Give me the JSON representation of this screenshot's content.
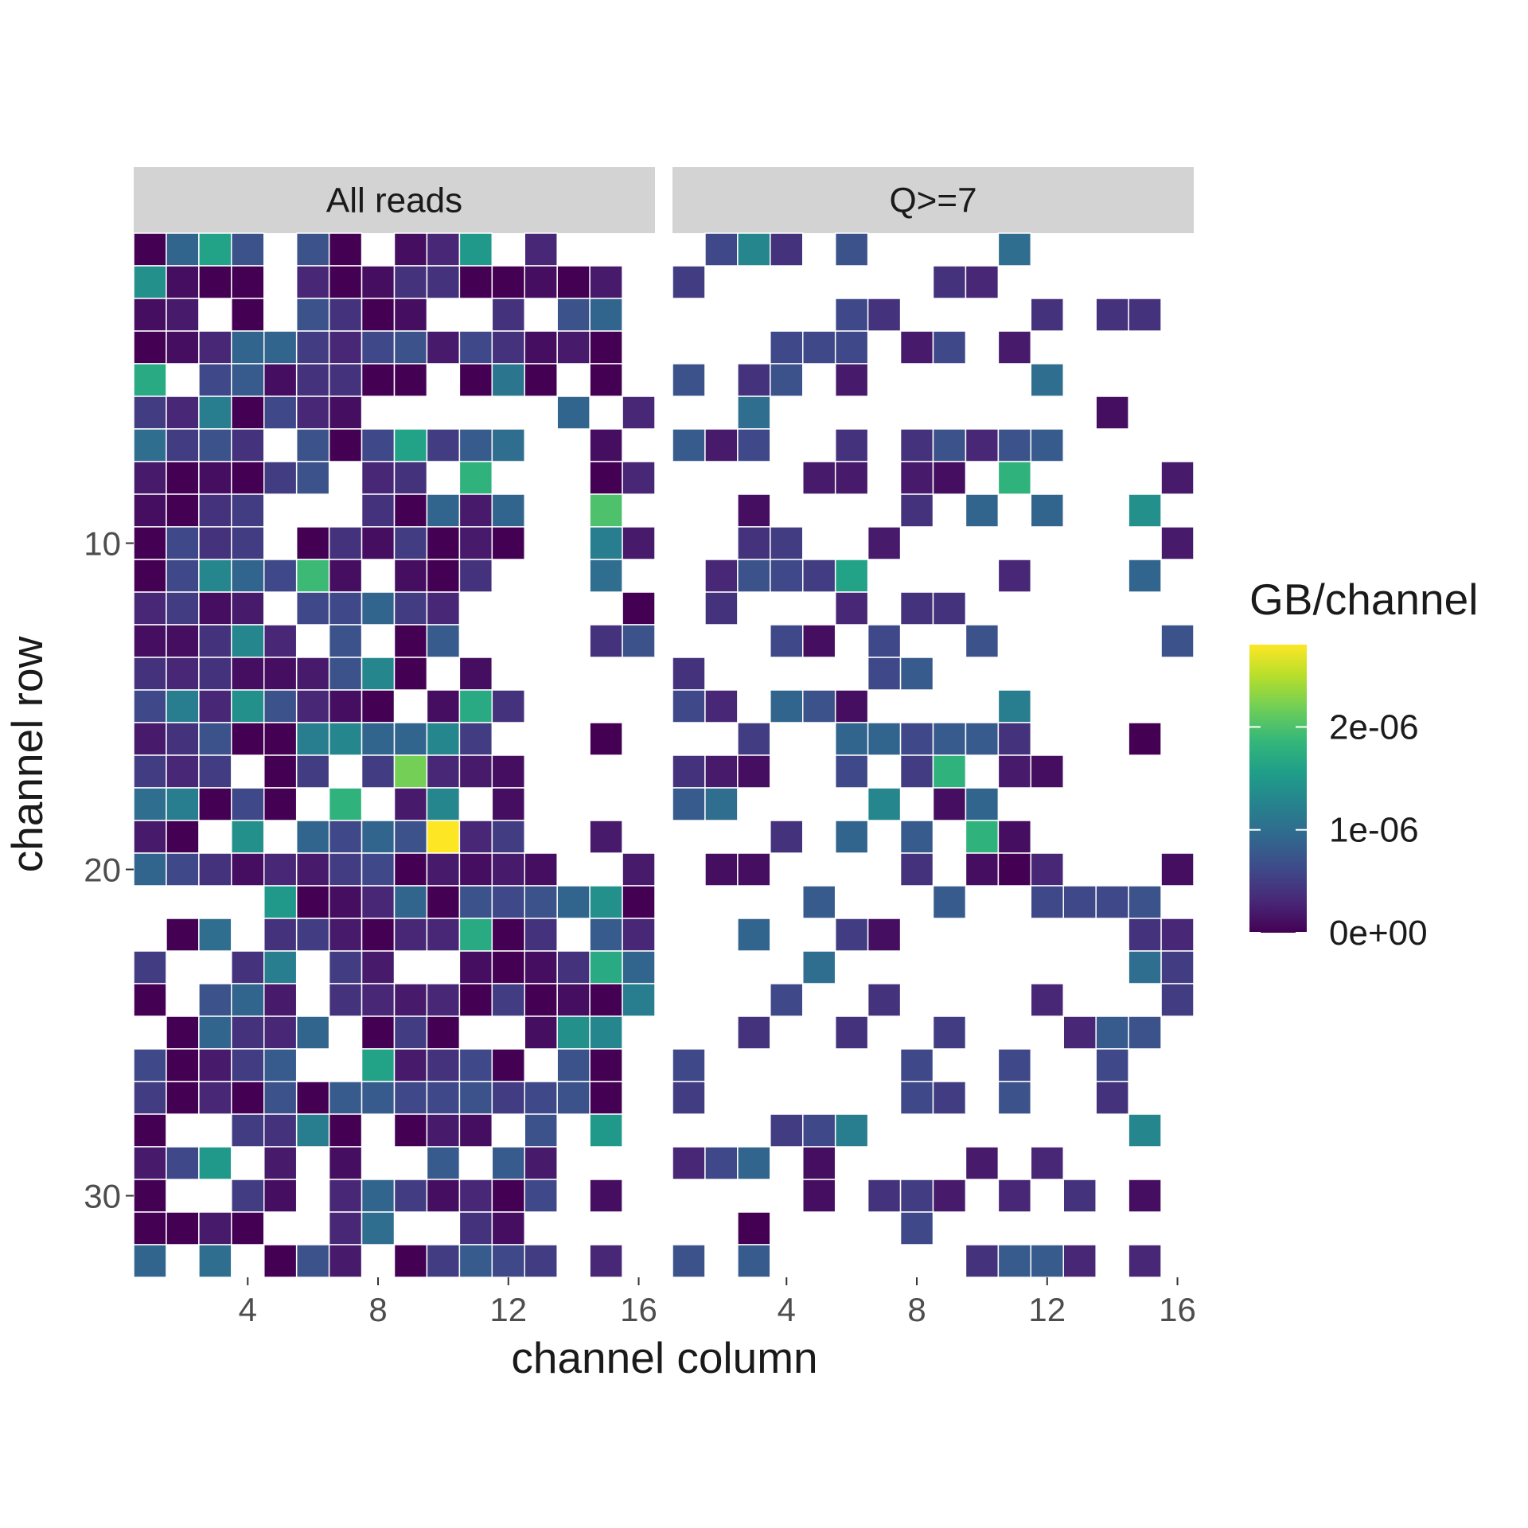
{
  "chart_data": {
    "type": "heatmap",
    "xlabel": "channel column",
    "ylabel": "channel row",
    "x_ticks": [
      4,
      8,
      12,
      16
    ],
    "y_ticks": [
      10,
      20,
      30
    ],
    "x_range": [
      0.5,
      16.5
    ],
    "y_range": [
      0.5,
      32.5
    ],
    "y_reversed": true,
    "legend": {
      "title": "GB/channel",
      "position": "right",
      "labels": [
        "0e+00",
        "1e-06",
        "2e-06"
      ],
      "breaks": [
        0,
        1e-06,
        2e-06
      ],
      "range": [
        0,
        2.8e-06
      ],
      "palette": "viridis"
    },
    "grid": false,
    "panels": [
      {
        "label": "All reads",
        "rows": [
          "0 9 16 7 - 7 0 - 1 3 15 - 3 - - -",
          "14 1 0 0 - 3 0 1 4 4 0 0 1 0 2 -",
          "1 2 - 0 - 7 4 0 1 - - 4 - 7 9 -",
          "0 1 3 9 9 5 3 6 7 2 6 4 1 2 0 -",
          "17 - 6 8 1 4 4 0 0 - 0 11 0 - 0 -",
          "5 3 12 0 6 3 1 - - - - - - 9 - 3",
          "10 5 7 4 - 7 0 6 16 5 8 10 - - 1 -",
          "2 0 1 0 5 7 - 3 4 - 18 - - - 0 3",
          "1 0 4 5 - - - 4 0 9 2 9 - - 20 -",
          "0 6 4 5 - 0 4 1 5 0 2 0 - - 12 2",
          "0 6 13 9 6 19 1 - 1 0 4 - - - 10 -",
          "3 5 1 2 - 6 6 9 5 3 - - - - - 0",
          "1 1 4 13 3 - 7 - 0 8 - - - - 4 7",
          "4 3 4 1 1 2 7 13 0 - 1 - - - - -",
          "6 12 3 14 7 3 1 0 - 1 17 4 - - - -",
          "2 4 7 0 0 12 13 9 9 13 5 - - - 0 -",
          "5 3 5 - 0 5 - 5 22 3 2 1 - - - -",
          "10 12 0 6 0 - 18 - 2 13 - 1 - - - -",
          "2 0 - 14 - 9 6 9 7 28 3 5 - - 2 -",
          "9 6 4 1 3 2 5 6 0 2 1 2 1 - - 2",
          "- - - - 15 0 1 3 9 0 7 6 7 9 14 0",
          "- 0 10 - 4 5 2 0 3 3 17 0 4 - 8 3",
          "5 - - 4 12 - 5 2 - - 1 0 1 4 17 9",
          "0 - 7 9 2 - 4 3 2 3 0 5 0 1 0 12",
          "- 0 9 4 3 9 - 0 5 0 - - 1 14 13 -",
          "6 0 2 5 8 - - 16 2 4 6 0 - 7 0 -",
          "5 0 3 0 7 0 8 8 6 6 7 5 6 7 0 -",
          "0 - - 5 4 12 0 - 0 2 1 - 7 - 15 -",
          "2 6 15 - 2 - 1 - - 8 - 8 2 - - -",
          "0 - - 5 1 - 3 9 5 1 3 0 6 - 1 -",
          "0 0 2 0 - - 3 10 - - 4 1 - - - -",
          "9 - 10 - 0 7 2 - 0 5 8 6 5 - 3 -"
        ]
      },
      {
        "label": "Q>=7",
        "rows": [
          "- 6 13 4 - 7 - - - - 10 - - - - -",
          "5 - - - - - - - 4 3 - - - - - -",
          "- - - - - 6 4 - - - - 4 - 4 4 -",
          "- - - 6 6 6 - 2 6 - 2 - - - - -",
          "7 - 4 7 - 2 - - - - - 10 - - - -",
          "- - 10 - - - - - - - - - - 1 - -",
          "8 2 6 - - 4 - 4 7 3 7 8 - - - -",
          "- - - - 2 2 - 2 1 - 18 - - - - 2",
          "- - 1 - - - - 4 - 9 - 9 - - 14 -",
          "- - 4 5 - - 2 - - - - - - - - 2",
          "- 3 7 6 5 16 - - - - 3 - - - 9 -",
          "- 4 - - - 3 - 4 4 - - - - - - -",
          "- - - 6 1 - 6 - - 7 - - - - - 7",
          "4 - - - - - 6 8 - - - - - - - -",
          "6 3 - 9 7 1 - - - - 12 - - - - -",
          "- - 5 - - 9 9 6 8 8 4 - - - 0 -",
          "4 2 1 - - 6 - 5 18 - 2 1 - - - -",
          "8 10 - - - - 13 - 1 9 - - - - - -",
          "- - - 4 - 9 - 8 - 18 1 - - - - -",
          "- 1 1 - - - - 4 - 1 0 3 - - - 1",
          "- - - - 8 - - - 8 - - 6 6 6 7 -",
          "- - 9 - - 5 1 - - - - - - - 4 3",
          "- - - - 10 - - - - - - - - - 10 5",
          "- - - 6 - - 4 - - - - 3 - - - 5",
          "- - 4 - - 4 - - 5 - - - 3 8 7 -",
          "6 - - - - - - 6 - - 6 - - 6 - -",
          "5 - - - - - - 6 5 - 7 - - 4 - -",
          "- - - 5 6 12 - - - - - - - - 13 -",
          "3 6 9 - 1 - - - - 2 - 3 - - - -",
          "- - - - 1 - 4 5 2 - 3 - 4 - 1 -",
          "- - 0 - - - - 6 - - - - - - - -",
          "7 - 8 - - - - - - 4 8 8 3 - 3 -"
        ]
      }
    ],
    "value_scale": 1e-07,
    "colors": {
      "strip": "#d3d3d3",
      "tile_border": "#ffffff",
      "viridis": [
        "#440154",
        "#482878",
        "#3e4a89",
        "#31688e",
        "#26828e",
        "#1f9e89",
        "#35b779",
        "#6ece58",
        "#b5de2b",
        "#fde725"
      ]
    }
  }
}
